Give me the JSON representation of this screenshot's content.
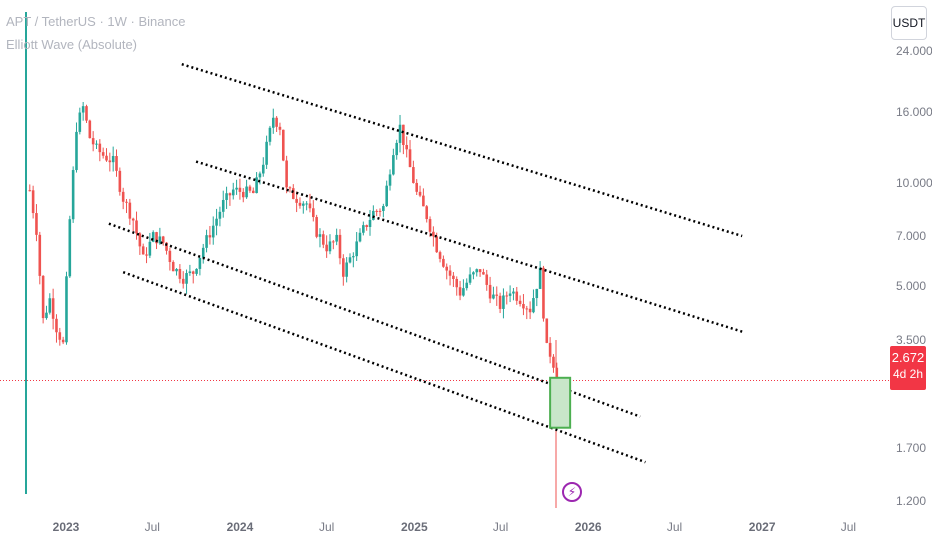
{
  "header": {
    "title": "APT / TetherUS · 1W · Binance",
    "indicator": "Elliott Wave (Absolute)",
    "currency": "USDT"
  },
  "price_badge": {
    "price": "2.672",
    "countdown": "4d 2h"
  },
  "event_icon": "lightning-icon",
  "colors": {
    "up": "#26a69a",
    "down": "#ef5350",
    "price_line": "#f23645",
    "box": "#4caf50",
    "channel": "#000000"
  },
  "chart_data": {
    "type": "candlestick",
    "scale": "log",
    "ylim": [
      1.0,
      26.0
    ],
    "y_ticks": [
      "24.000",
      "16.000",
      "10.000",
      "7.000",
      "5.000",
      "3.500",
      "2.672",
      "1.700",
      "1.200"
    ],
    "x_ticks": [
      "2023",
      "Jul",
      "2024",
      "Jul",
      "2025",
      "Jul",
      "2026",
      "Jul",
      "2027",
      "Jul"
    ],
    "x_range": [
      "2022-10-17",
      "2027-08-01"
    ],
    "last_price": 2.672,
    "close_path": [
      {
        "date": "2022-10-17",
        "close": 9.5
      },
      {
        "date": "2022-10-31",
        "close": 7.3
      },
      {
        "date": "2022-11-14",
        "close": 4.0
      },
      {
        "date": "2022-11-28",
        "close": 4.6
      },
      {
        "date": "2022-12-12",
        "close": 3.8
      },
      {
        "date": "2022-12-26",
        "close": 3.4
      },
      {
        "date": "2023-01-09",
        "close": 7.8
      },
      {
        "date": "2023-01-23",
        "close": 14.5
      },
      {
        "date": "2023-02-06",
        "close": 16.5
      },
      {
        "date": "2023-02-20",
        "close": 13.5
      },
      {
        "date": "2023-03-06",
        "close": 12.5
      },
      {
        "date": "2023-03-20",
        "close": 12.0
      },
      {
        "date": "2023-04-10",
        "close": 11.5
      },
      {
        "date": "2023-05-01",
        "close": 9.0
      },
      {
        "date": "2023-05-22",
        "close": 7.8
      },
      {
        "date": "2023-06-12",
        "close": 6.0
      },
      {
        "date": "2023-07-03",
        "close": 7.0
      },
      {
        "date": "2023-07-24",
        "close": 6.7
      },
      {
        "date": "2023-08-14",
        "close": 5.7
      },
      {
        "date": "2023-09-04",
        "close": 5.3
      },
      {
        "date": "2023-09-25",
        "close": 5.5
      },
      {
        "date": "2023-10-16",
        "close": 6.5
      },
      {
        "date": "2023-11-06",
        "close": 7.5
      },
      {
        "date": "2023-11-27",
        "close": 8.7
      },
      {
        "date": "2023-12-18",
        "close": 9.5
      },
      {
        "date": "2024-01-08",
        "close": 9.4
      },
      {
        "date": "2024-01-29",
        "close": 9.3
      },
      {
        "date": "2024-02-19",
        "close": 11.5
      },
      {
        "date": "2024-03-11",
        "close": 15.5
      },
      {
        "date": "2024-03-25",
        "close": 14.5
      },
      {
        "date": "2024-04-08",
        "close": 9.5
      },
      {
        "date": "2024-04-29",
        "close": 9.0
      },
      {
        "date": "2024-05-20",
        "close": 8.7
      },
      {
        "date": "2024-06-10",
        "close": 7.2
      },
      {
        "date": "2024-07-01",
        "close": 6.5
      },
      {
        "date": "2024-07-22",
        "close": 6.8
      },
      {
        "date": "2024-08-05",
        "close": 5.5
      },
      {
        "date": "2024-08-26",
        "close": 6.3
      },
      {
        "date": "2024-09-16",
        "close": 7.3
      },
      {
        "date": "2024-10-07",
        "close": 8.2
      },
      {
        "date": "2024-10-28",
        "close": 8.5
      },
      {
        "date": "2024-11-18",
        "close": 12.5
      },
      {
        "date": "2024-12-02",
        "close": 14.5
      },
      {
        "date": "2024-12-16",
        "close": 12.0
      },
      {
        "date": "2025-01-06",
        "close": 9.3
      },
      {
        "date": "2025-01-27",
        "close": 8.0
      },
      {
        "date": "2025-02-17",
        "close": 6.5
      },
      {
        "date": "2025-03-10",
        "close": 5.6
      },
      {
        "date": "2025-04-07",
        "close": 4.8
      },
      {
        "date": "2025-04-28",
        "close": 5.3
      },
      {
        "date": "2025-05-19",
        "close": 5.6
      },
      {
        "date": "2025-06-09",
        "close": 4.8
      },
      {
        "date": "2025-06-30",
        "close": 4.4
      },
      {
        "date": "2025-07-21",
        "close": 4.9
      },
      {
        "date": "2025-08-11",
        "close": 4.6
      },
      {
        "date": "2025-09-01",
        "close": 4.3
      },
      {
        "date": "2025-09-22",
        "close": 5.5
      },
      {
        "date": "2025-09-29",
        "close": 4.2
      },
      {
        "date": "2025-10-06",
        "close": 3.3
      },
      {
        "date": "2025-10-13",
        "close": 3.2
      },
      {
        "date": "2025-10-20",
        "close": 3.0
      },
      {
        "date": "2025-10-27",
        "close": 2.672
      }
    ],
    "channel_lines": [
      {
        "from": {
          "date": "2023-09-01",
          "price": 22.0
        },
        "to": {
          "date": "2026-11-20",
          "price": 7.0
        }
      },
      {
        "from": {
          "date": "2023-10-01",
          "price": 11.5
        },
        "to": {
          "date": "2026-11-20",
          "price": 3.7
        }
      },
      {
        "from": {
          "date": "2023-04-01",
          "price": 7.6
        },
        "to": {
          "date": "2026-04-20",
          "price": 2.1
        }
      },
      {
        "from": {
          "date": "2023-05-01",
          "price": 5.5
        },
        "to": {
          "date": "2026-05-01",
          "price": 1.55
        }
      }
    ],
    "target_box": {
      "from": "2025-10-13",
      "to": "2025-11-24",
      "top": 2.72,
      "bottom": 1.95
    }
  }
}
